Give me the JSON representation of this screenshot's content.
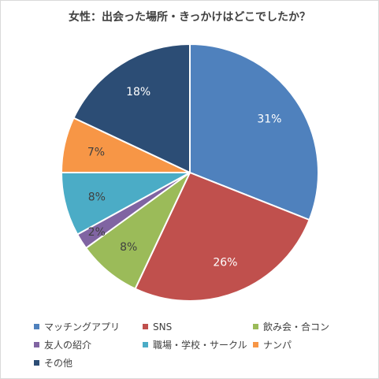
{
  "chart_data": {
    "type": "pie",
    "title": "女性：出会った場所・きっかけはどこでしたか？",
    "categories": [
      "マッチングアプリ",
      "SNS",
      "飲み会・合コン",
      "友人の紹介",
      "職場・学校・サークル",
      "ナンパ",
      "その他"
    ],
    "values": [
      31,
      26,
      8,
      2,
      8,
      7,
      18
    ],
    "labels": [
      "31%",
      "26%",
      "8%",
      "2%",
      "8%",
      "7%",
      "18%"
    ],
    "colors": [
      "#4f81bd",
      "#c0504d",
      "#9bbb59",
      "#8064a2",
      "#4bacc6",
      "#f79646",
      "#2c4d75"
    ],
    "label_colors": [
      "#ffffff",
      "#ffffff",
      "#404040",
      "#404040",
      "#404040",
      "#404040",
      "#ffffff"
    ],
    "start_angle_deg": 0,
    "direction": "clockwise",
    "legend_position": "bottom"
  }
}
